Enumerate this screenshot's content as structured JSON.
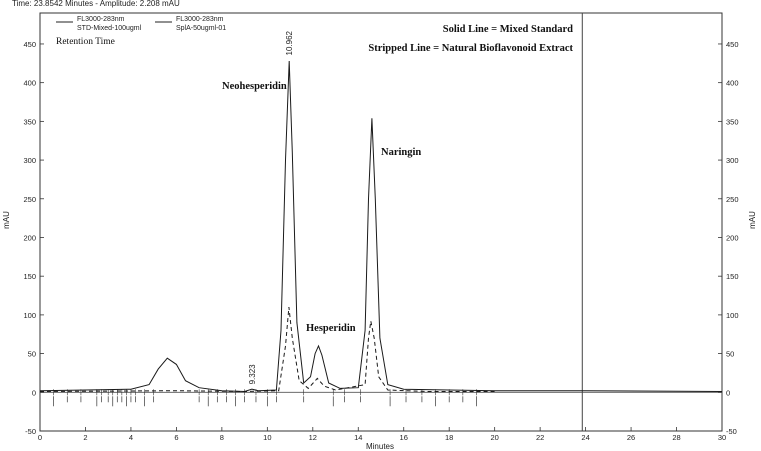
{
  "status_bar": {
    "label": "Time:  23.8542 Minutes - Amplitude:  2.208 mAU"
  },
  "chart_data": {
    "type": "line",
    "title": "",
    "xlabel": "Minutes",
    "ylabel_left": "mAU",
    "ylabel_right": "mAU",
    "xlim": [
      0,
      30
    ],
    "ylim": [
      -50,
      490
    ],
    "x_ticks": [
      0,
      2,
      4,
      6,
      8,
      10,
      12,
      14,
      16,
      18,
      20,
      22,
      24,
      26,
      28,
      30
    ],
    "y_ticks": [
      -50,
      0,
      50,
      100,
      150,
      200,
      250,
      300,
      350,
      400,
      450
    ],
    "cursor_x": 23.8542,
    "legend": [
      {
        "line1": "FL3000-283nm",
        "line2": "STD-Mixed-100ugml",
        "style": "solid"
      },
      {
        "line1": "FL3000-283nm",
        "line2": "SplA-50ugml-01",
        "style": "dashed"
      }
    ],
    "legend_extra": "Retention Time",
    "annotations": {
      "solid_note": "Solid Line = Mixed Standard",
      "stripped_note": "Stripped Line = Natural Bioflavonoid Extract",
      "neohesperidin": "Neohesperidin",
      "hesperidin": "Hesperidin",
      "naringin": "Naringin"
    },
    "peak_labels": [
      {
        "text": "10.962",
        "x": 10.962,
        "y": 430
      },
      {
        "text": "9.323",
        "x": 9.323,
        "y": 5
      }
    ],
    "series": [
      {
        "name": "FL3000-283nm STD-Mixed-100ugml",
        "style": "solid",
        "points": [
          [
            0,
            2
          ],
          [
            2,
            3
          ],
          [
            4,
            4
          ],
          [
            4.8,
            10
          ],
          [
            5.2,
            30
          ],
          [
            5.6,
            44
          ],
          [
            6.0,
            36
          ],
          [
            6.4,
            15
          ],
          [
            7.0,
            6
          ],
          [
            8,
            2
          ],
          [
            9,
            1
          ],
          [
            9.323,
            4
          ],
          [
            9.6,
            2
          ],
          [
            10.4,
            3
          ],
          [
            10.6,
            80
          ],
          [
            10.8,
            300
          ],
          [
            10.96,
            428
          ],
          [
            11.1,
            310
          ],
          [
            11.3,
            90
          ],
          [
            11.6,
            12
          ],
          [
            11.9,
            20
          ],
          [
            12.1,
            50
          ],
          [
            12.25,
            60
          ],
          [
            12.4,
            48
          ],
          [
            12.7,
            12
          ],
          [
            13.2,
            5
          ],
          [
            14.0,
            6
          ],
          [
            14.3,
            80
          ],
          [
            14.45,
            250
          ],
          [
            14.6,
            354
          ],
          [
            14.75,
            250
          ],
          [
            14.95,
            70
          ],
          [
            15.3,
            10
          ],
          [
            16,
            4
          ],
          [
            20,
            2
          ],
          [
            24,
            2
          ],
          [
            30,
            1
          ]
        ]
      },
      {
        "name": "FL3000-283nm SplA-50ugml-01",
        "style": "dashed",
        "points": [
          [
            0,
            1
          ],
          [
            6,
            2
          ],
          [
            9,
            1
          ],
          [
            10.5,
            2
          ],
          [
            10.8,
            60
          ],
          [
            10.95,
            110
          ],
          [
            11.1,
            70
          ],
          [
            11.4,
            15
          ],
          [
            11.8,
            5
          ],
          [
            12.2,
            18
          ],
          [
            12.5,
            8
          ],
          [
            13.0,
            3
          ],
          [
            14.3,
            10
          ],
          [
            14.45,
            70
          ],
          [
            14.55,
            92
          ],
          [
            14.7,
            70
          ],
          [
            14.9,
            20
          ],
          [
            15.3,
            3
          ],
          [
            17,
            1
          ],
          [
            20,
            1
          ]
        ]
      }
    ]
  }
}
